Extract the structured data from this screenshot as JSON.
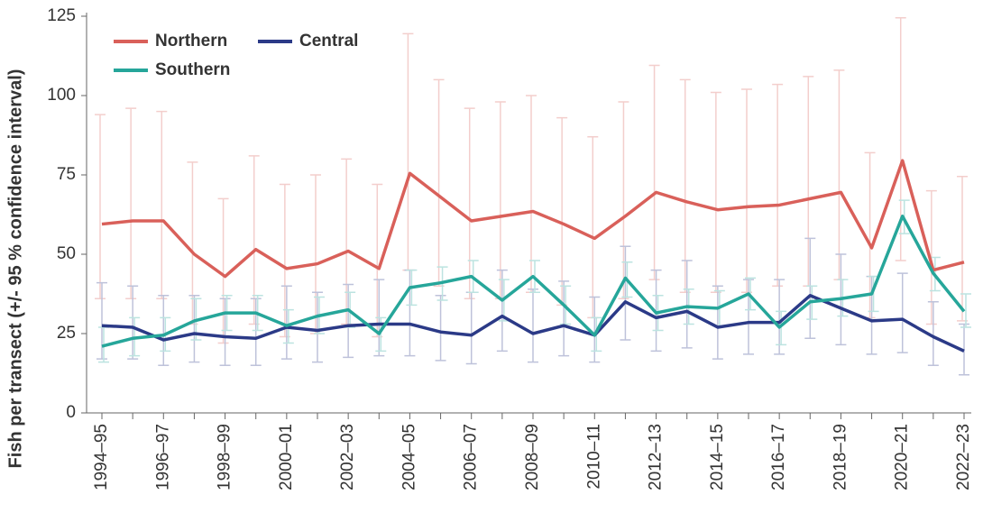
{
  "chart_data": {
    "type": "line",
    "y_label": "Fish per transect (+/- 95 % confidence interval)",
    "categories": [
      "1994–95",
      null,
      "1996–97",
      null,
      "1998–99",
      null,
      "2000–01",
      null,
      "2002–03",
      null,
      "2004–05",
      null,
      "2006–07",
      null,
      "2008–09",
      null,
      "2010–11",
      null,
      "2012–13",
      null,
      "2014–15",
      null,
      "2016–17",
      null,
      "2018–19",
      null,
      "2020–21",
      null,
      "2022–23"
    ],
    "ylim": [
      0,
      125
    ],
    "yticks": [
      0,
      25,
      50,
      75,
      100,
      125
    ],
    "grid": false,
    "legend": "upper left",
    "series": [
      {
        "name": "Northern",
        "color": "#d9605a",
        "values": [
          59.5,
          60.5,
          60.5,
          50,
          43,
          51.5,
          45.5,
          47,
          51,
          45.5,
          75.5,
          68,
          60.5,
          62,
          63.5,
          59.5,
          55,
          62,
          69.5,
          66.5,
          64,
          65,
          65.5,
          67.5,
          69.5,
          52,
          79.5,
          45,
          47.5
        ],
        "ci_upper": [
          94,
          96,
          95,
          79,
          67.5,
          81,
          72,
          75,
          80,
          72,
          119.5,
          105,
          96,
          98,
          100,
          93,
          87,
          98,
          109.5,
          105,
          101,
          102,
          103.5,
          106,
          108,
          82,
          124.5,
          70,
          74.5
        ],
        "ci_lower": [
          36,
          36,
          36,
          28,
          22,
          28,
          24,
          25,
          28,
          24,
          45,
          40,
          36,
          36,
          38,
          34,
          30,
          36,
          42,
          38,
          38,
          38,
          40,
          40,
          42,
          30,
          48,
          28,
          29
        ]
      },
      {
        "name": "Central",
        "color": "#2b3a87",
        "values": [
          27.5,
          27,
          23,
          25,
          24,
          23.5,
          27,
          26,
          27.5,
          28,
          28,
          25.5,
          24.5,
          30.5,
          25,
          27.5,
          24.5,
          35,
          30,
          32,
          27,
          28.5,
          28.5,
          37,
          33,
          29,
          29.5,
          24,
          19.5
        ],
        "ci_upper": [
          41,
          40,
          37,
          37,
          36,
          36,
          40,
          38,
          40.5,
          42,
          45,
          37,
          38,
          45,
          39,
          41.5,
          36.5,
          52.5,
          45,
          48,
          40,
          42,
          42,
          55,
          50,
          43,
          44,
          35,
          28
        ],
        "ci_lower": [
          17,
          17,
          15,
          16,
          15,
          15,
          17,
          16,
          17.5,
          18,
          18,
          16.5,
          15.5,
          19.5,
          16,
          18,
          16,
          23,
          19.5,
          20.5,
          17,
          18.5,
          18.5,
          23.5,
          21.5,
          18.5,
          19,
          15,
          12
        ]
      },
      {
        "name": "Southern",
        "color": "#26a69a",
        "values": [
          21,
          23.5,
          24.5,
          29,
          31.5,
          31.5,
          27.5,
          30.5,
          32.5,
          25,
          39.5,
          41,
          43,
          35.5,
          43,
          34,
          24.5,
          42.5,
          31.5,
          33.5,
          33,
          37.5,
          27,
          35,
          36,
          37.5,
          62,
          44,
          32
        ],
        "ci_upper": [
          27,
          30,
          30,
          36,
          37,
          37,
          32.5,
          36.5,
          38,
          30,
          45,
          46,
          48,
          42,
          48,
          40,
          30,
          47.5,
          37,
          39,
          38.5,
          42.5,
          32,
          40,
          42,
          43,
          67,
          49,
          37.5
        ],
        "ci_lower": [
          16,
          18,
          19.5,
          23,
          26,
          26,
          22,
          25,
          27,
          19.5,
          34,
          35.5,
          38,
          29,
          38,
          28,
          19.5,
          36.5,
          26,
          28,
          27.5,
          32.5,
          21.5,
          29.5,
          30.5,
          32,
          56.5,
          38.5,
          27
        ]
      }
    ]
  }
}
